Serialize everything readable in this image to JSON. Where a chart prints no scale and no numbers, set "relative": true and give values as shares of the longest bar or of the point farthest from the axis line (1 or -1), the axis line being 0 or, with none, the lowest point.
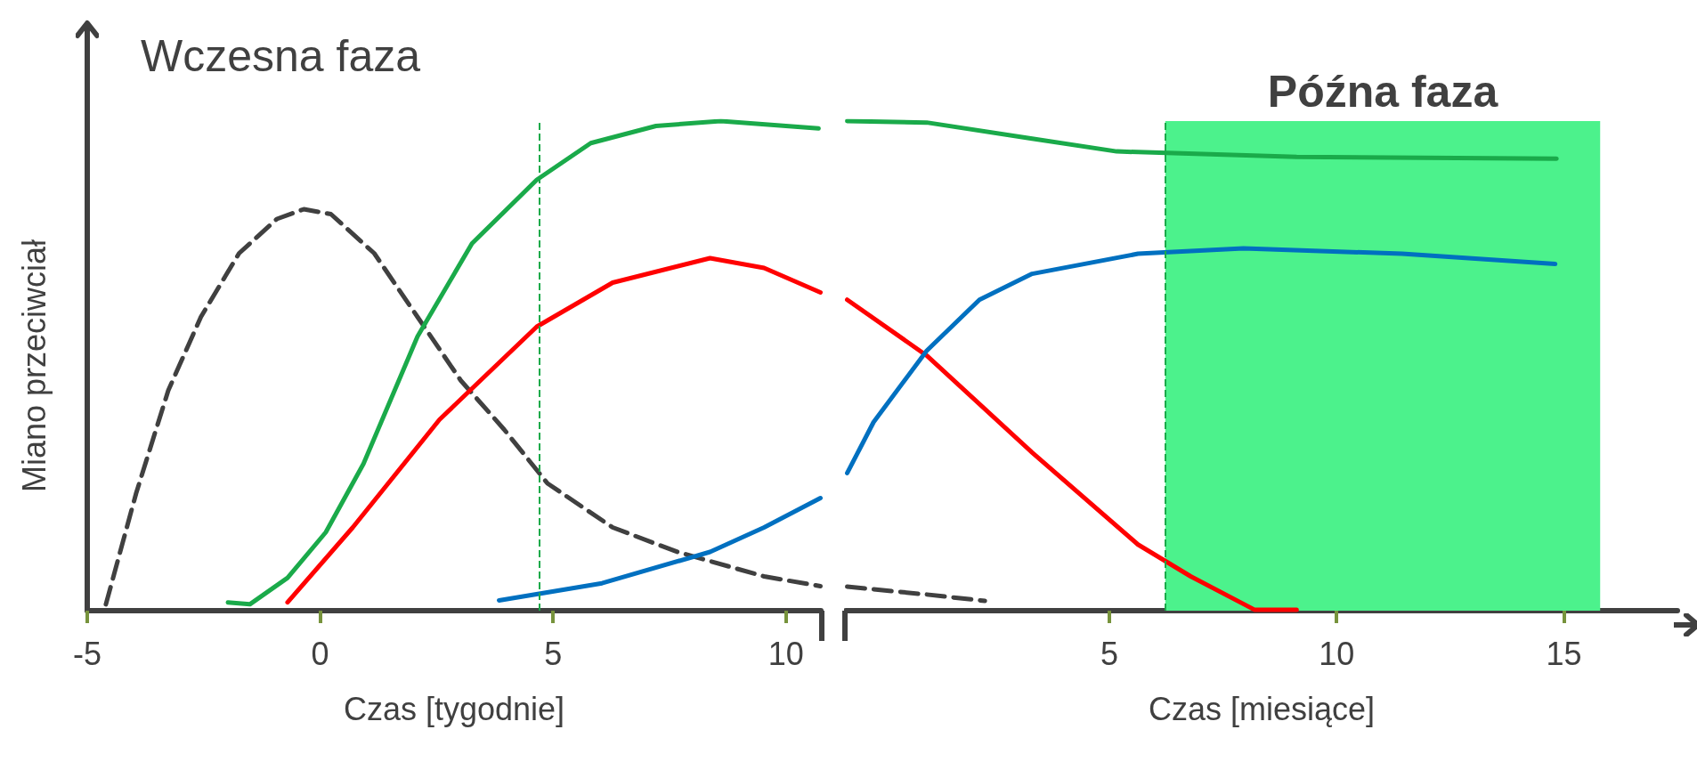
{
  "chart_data": [
    {
      "type": "line",
      "relative": true,
      "xlabel": "Czas [tygodnie]",
      "ylabel": "Miano przeciwciał",
      "annotations": [
        "Wczesna faza"
      ],
      "xlim": [
        -5,
        10.75
      ],
      "xticks": [
        -5,
        0,
        5,
        10
      ],
      "grid": false,
      "ref_lines": [
        {
          "axis": "x",
          "value": 4.7,
          "color": "#1aaa4a",
          "line_style": "dashed"
        }
      ],
      "series": [
        {
          "color": "#404040",
          "line_style": "dashed",
          "x": [
            -4.6,
            -3.95,
            -3.26,
            -2.56,
            -1.74,
            -0.93,
            -0.35,
            0.23,
            1.16,
            2.09,
            3.02,
            3.95,
            4.88,
            6.28,
            7.67,
            9.53,
            10.74
          ],
          "values": [
            0.013,
            0.24,
            0.45,
            0.6,
            0.73,
            0.8,
            0.82,
            0.81,
            0.73,
            0.6,
            0.47,
            0.37,
            0.26,
            0.17,
            0.12,
            0.07,
            0.05
          ]
        },
        {
          "color": "#1aaa4a",
          "line_style": "solid",
          "x": [
            -1.98,
            -1.51,
            -0.7,
            0.12,
            0.93,
            2.09,
            3.26,
            4.65,
            5.81,
            7.21,
            8.6,
            10.7
          ],
          "values": [
            0.017,
            0.013,
            0.067,
            0.16,
            0.3,
            0.56,
            0.75,
            0.88,
            0.955,
            0.99,
            1,
            0.985
          ]
        },
        {
          "color": "#ff0000",
          "line_style": "solid",
          "x": [
            -0.7,
            0.7,
            2.56,
            4.65,
            6.28,
            8.37,
            9.53,
            10.74
          ],
          "values": [
            0.017,
            0.17,
            0.39,
            0.58,
            0.67,
            0.72,
            0.7,
            0.65
          ]
        },
        {
          "color": "#0070c0",
          "line_style": "solid",
          "x": [
            3.84,
            6.05,
            8.37,
            9.53,
            10.74
          ],
          "values": [
            0.021,
            0.056,
            0.12,
            0.17,
            0.23
          ]
        }
      ]
    },
    {
      "type": "line",
      "relative": true,
      "xlabel": "Czas [miesiące]",
      "xlim": [
        -0.8,
        17.5
      ],
      "xticks": [
        5,
        10,
        15
      ],
      "grid": false,
      "ref_lines": [
        {
          "axis": "x",
          "value": 6.23,
          "color": "#1aaa4a",
          "line_style": "dashed"
        }
      ],
      "bands": [
        {
          "axis": "x",
          "from": 6.23,
          "to": 15.8,
          "label": "Późna faza",
          "color": "#4cf28c"
        }
      ],
      "series": [
        {
          "color": "#404040",
          "line_style": "dashed",
          "x": [
            -0.77,
            0.98,
            2.26
          ],
          "values": [
            0.049,
            0.033,
            0.02
          ]
        },
        {
          "color": "#1aaa4a",
          "line_style": "solid",
          "x": [
            -0.77,
            0.98,
            3.3,
            5.16,
            9.12,
            14.84
          ],
          "values": [
            1,
            0.997,
            0.964,
            0.938,
            0.927,
            0.923
          ]
        },
        {
          "color": "#ff0000",
          "line_style": "solid",
          "x": [
            -0.77,
            0.98,
            3.3,
            5.63,
            6.79,
            8.19,
            9.12
          ],
          "values": [
            0.635,
            0.521,
            0.323,
            0.135,
            0.07,
            0.002,
            0.002
          ]
        },
        {
          "color": "#0070c0",
          "line_style": "solid",
          "x": [
            -0.77,
            -0.19,
            0.98,
            2.14,
            3.3,
            5.63,
            7.95,
            11.44,
            14.81
          ],
          "values": [
            0.281,
            0.385,
            0.531,
            0.635,
            0.688,
            0.729,
            0.74,
            0.729,
            0.708
          ]
        }
      ]
    }
  ]
}
